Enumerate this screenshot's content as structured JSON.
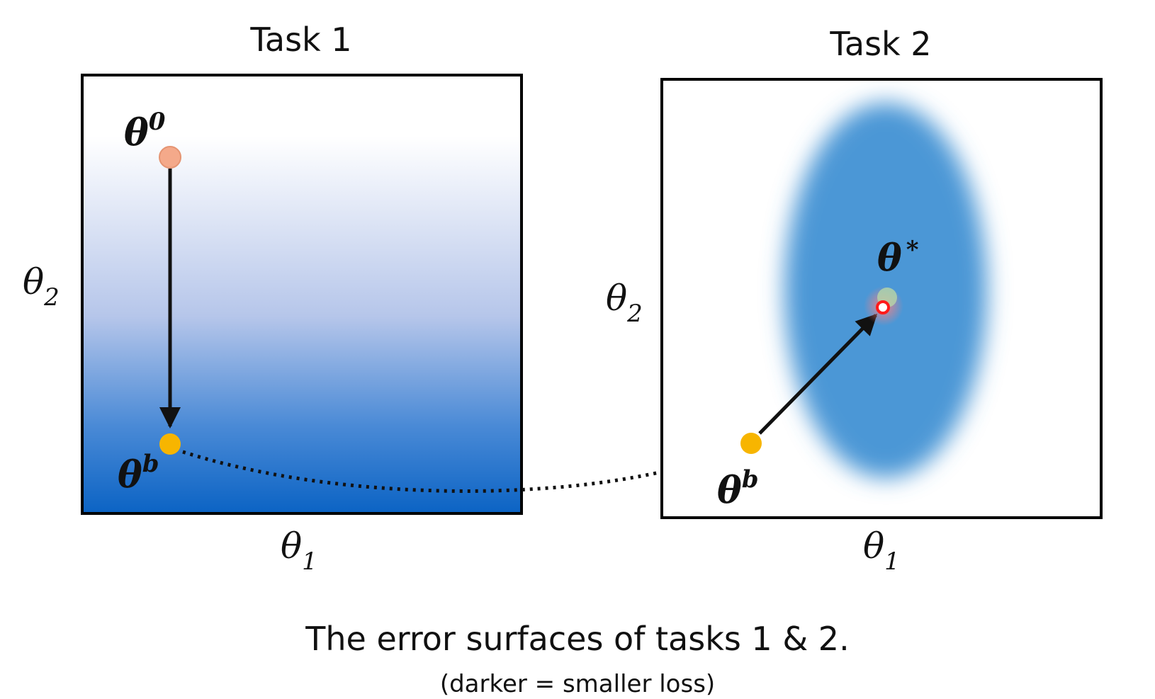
{
  "task1": {
    "title": "Task 1",
    "xlabel": "θ",
    "xlabel_sub": "1",
    "ylabel": "θ",
    "ylabel_sub": "2",
    "start_point": {
      "symbol": "θ",
      "sup": "0"
    },
    "end_point": {
      "symbol": "θ",
      "sup": "b"
    }
  },
  "task2": {
    "title": "Task 2",
    "xlabel": "θ",
    "xlabel_sub": "1",
    "ylabel": "θ",
    "ylabel_sub": "2",
    "start_point": {
      "symbol": "θ",
      "sup": "b"
    },
    "optimum_point": {
      "symbol": "θ",
      "sup": "*"
    }
  },
  "caption": "The error surfaces of tasks 1 & 2.",
  "sub_caption": "(darker = smaller loss)",
  "colors": {
    "surface_dark": "#0b63c4",
    "surface_light": "#ffffff",
    "ellipse": "#4b97d6",
    "start_point": "#f4a98a",
    "end_point": "#f7b500",
    "optimum_point": "#ff2020",
    "arrow": "#111111"
  }
}
